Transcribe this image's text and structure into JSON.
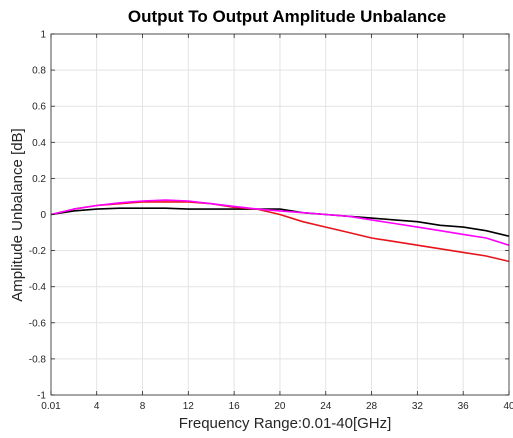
{
  "chart_data": {
    "type": "line",
    "title": "Output To Output Amplitude Unbalance",
    "xlabel": "Frequency Range:0.01-40[GHz]",
    "ylabel": "Amplitude Unbalance [dB]",
    "xlim": [
      0.01,
      40
    ],
    "ylim": [
      -1,
      1
    ],
    "grid": true,
    "x_ticks": [
      0.01,
      4,
      8,
      12,
      16,
      20,
      24,
      28,
      32,
      36,
      40
    ],
    "x_tick_labels": [
      "0.01",
      "4",
      "8",
      "12",
      "16",
      "20",
      "24",
      "28",
      "32",
      "36",
      "40"
    ],
    "y_ticks": [
      -1,
      -0.8,
      -0.6,
      -0.4,
      -0.2,
      0,
      0.2,
      0.4,
      0.6,
      0.8,
      1
    ],
    "y_tick_labels": [
      "-1",
      "-0.8",
      "-0.6",
      "-0.4",
      "-0.2",
      "0",
      "0.2",
      "0.4",
      "0.6",
      "0.8",
      "1"
    ],
    "x": [
      0.01,
      2,
      4,
      6,
      8,
      10,
      12,
      14,
      16,
      18,
      20,
      22,
      24,
      26,
      28,
      30,
      32,
      34,
      36,
      38,
      40
    ],
    "series": [
      {
        "color": "#000000",
        "values": [
          0.0,
          0.02,
          0.03,
          0.035,
          0.035,
          0.035,
          0.03,
          0.03,
          0.03,
          0.03,
          0.03,
          0.01,
          0.0,
          -0.01,
          -0.02,
          -0.03,
          -0.04,
          -0.06,
          -0.07,
          -0.09,
          -0.12
        ]
      },
      {
        "color": "#e8141c",
        "values": [
          0.0,
          0.03,
          0.05,
          0.06,
          0.07,
          0.07,
          0.07,
          0.06,
          0.04,
          0.03,
          0.0,
          -0.04,
          -0.07,
          -0.1,
          -0.13,
          -0.15,
          -0.17,
          -0.19,
          -0.21,
          -0.23,
          -0.26
        ]
      },
      {
        "color": "#ff00ff",
        "values": [
          0.0,
          0.03,
          0.05,
          0.065,
          0.075,
          0.08,
          0.075,
          0.06,
          0.045,
          0.03,
          0.02,
          0.01,
          0.0,
          -0.01,
          -0.03,
          -0.05,
          -0.07,
          -0.09,
          -0.11,
          -0.13,
          -0.17
        ]
      }
    ]
  }
}
